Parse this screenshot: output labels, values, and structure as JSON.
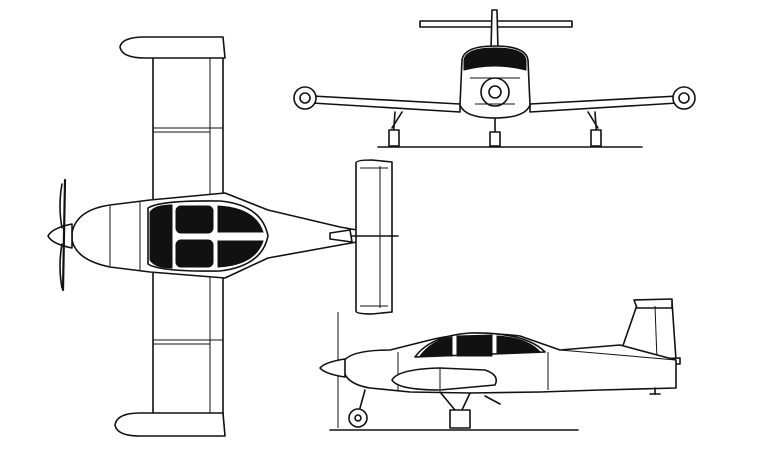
{
  "image": {
    "kind": "three-view aircraft line drawing",
    "background": "#ffffff",
    "ink": "#111111"
  },
  "views": [
    "top-view",
    "front-view",
    "side-view"
  ]
}
